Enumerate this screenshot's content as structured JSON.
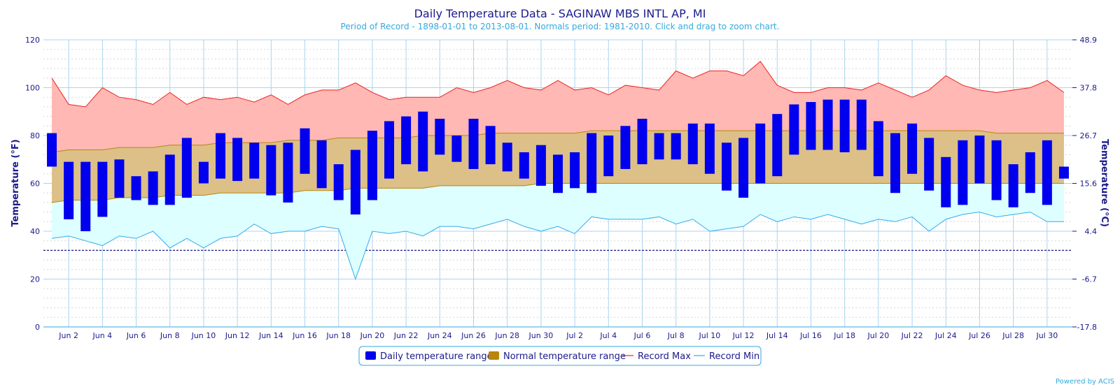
{
  "chart_data": {
    "type": "bar",
    "title": "Daily Temperature Data - SAGINAW MBS INTL AP, MI",
    "subtitle": "Period of Record - 1898-01-01 to 2013-08-01. Normals period: 1981-2010. Click and drag to zoom chart.",
    "ylabel": "Temperature (°F)",
    "ylabel_right": "Temperature (°C)",
    "ylim": [
      0,
      120
    ],
    "y_ticks": [
      0,
      20,
      40,
      60,
      80,
      100,
      120
    ],
    "y_ticks_right": [
      "-17.8",
      "-6.7",
      "4.4",
      "15.6",
      "26.7",
      "37.8",
      "48.9"
    ],
    "x_tick_labels": [
      "Jun 2",
      "Jun 4",
      "Jun 6",
      "Jun 8",
      "Jun 10",
      "Jun 12",
      "Jun 14",
      "Jun 16",
      "Jun 18",
      "Jun 20",
      "Jun 22",
      "Jun 24",
      "Jun 26",
      "Jun 28",
      "Jun 30",
      "Jul 2",
      "Jul 4",
      "Jul 6",
      "Jul 8",
      "Jul 10",
      "Jul 12",
      "Jul 14",
      "Jul 16",
      "Jul 18",
      "Jul 20",
      "Jul 22",
      "Jul 24",
      "Jul 26",
      "Jul 28",
      "Jul 30"
    ],
    "days": 61,
    "freezing_line": 32,
    "series": [
      {
        "name": "Daily temperature range",
        "color": "#0000ee",
        "low": [
          67,
          45,
          40,
          46,
          54,
          53,
          51,
          51,
          54,
          60,
          62,
          61,
          62,
          55,
          52,
          64,
          58,
          53,
          47,
          53,
          62,
          68,
          65,
          72,
          69,
          66,
          68,
          65,
          62,
          59,
          56,
          58,
          56,
          63,
          66,
          68,
          70,
          70,
          68,
          64,
          57,
          54,
          60,
          63,
          72,
          74,
          74,
          73,
          74,
          63,
          56,
          64,
          57,
          50,
          51,
          60,
          53,
          50,
          56,
          51,
          62
        ],
        "high": [
          81,
          69,
          69,
          69,
          70,
          63,
          65,
          72,
          79,
          69,
          81,
          79,
          77,
          76,
          77,
          83,
          78,
          68,
          74,
          82,
          86,
          88,
          90,
          87,
          80,
          87,
          84,
          77,
          73,
          76,
          72,
          73,
          81,
          80,
          84,
          87,
          81,
          81,
          85,
          85,
          77,
          79,
          85,
          89,
          93,
          94,
          95,
          95,
          95,
          86,
          81,
          85,
          79,
          71,
          78,
          80,
          78,
          68,
          73,
          78,
          67
        ]
      },
      {
        "name": "Normal temperature range",
        "color": "#b8860b",
        "low": [
          52,
          53,
          53,
          53,
          54,
          54,
          54,
          55,
          55,
          55,
          56,
          56,
          56,
          56,
          56,
          57,
          57,
          57,
          58,
          58,
          58,
          58,
          58,
          59,
          59,
          59,
          59,
          59,
          59,
          60,
          60,
          60,
          60,
          60,
          60,
          60,
          60,
          60,
          60,
          60,
          60,
          60,
          60,
          60,
          60,
          60,
          60,
          60,
          60,
          60,
          60,
          60,
          60,
          60,
          60,
          60,
          60,
          60,
          60,
          60,
          60
        ],
        "high": [
          73,
          74,
          74,
          74,
          75,
          75,
          75,
          76,
          76,
          76,
          77,
          77,
          77,
          77,
          78,
          78,
          78,
          79,
          79,
          79,
          79,
          79,
          80,
          80,
          80,
          80,
          81,
          81,
          81,
          81,
          81,
          81,
          82,
          82,
          82,
          82,
          82,
          82,
          82,
          82,
          82,
          82,
          82,
          82,
          82,
          82,
          82,
          82,
          82,
          82,
          82,
          82,
          82,
          82,
          82,
          82,
          81,
          81,
          81,
          81,
          81
        ]
      },
      {
        "name": "Record Max",
        "color": "#ee2222",
        "values": [
          104,
          93,
          92,
          100,
          96,
          95,
          93,
          98,
          93,
          96,
          95,
          96,
          94,
          97,
          93,
          97,
          99,
          99,
          102,
          98,
          95,
          96,
          96,
          96,
          100,
          98,
          100,
          103,
          100,
          99,
          103,
          99,
          100,
          97,
          101,
          100,
          99,
          107,
          104,
          107,
          107,
          105,
          111,
          101,
          98,
          98,
          100,
          100,
          99,
          102,
          99,
          96,
          99,
          105,
          101,
          99,
          98,
          99,
          100,
          103,
          98
        ]
      },
      {
        "name": "Record Min",
        "color": "#33aaee",
        "values": [
          37,
          38,
          36,
          34,
          38,
          37,
          40,
          33,
          37,
          33,
          37,
          38,
          43,
          39,
          40,
          40,
          42,
          41,
          20,
          40,
          39,
          40,
          38,
          42,
          42,
          41,
          43,
          45,
          42,
          40,
          42,
          39,
          46,
          45,
          45,
          45,
          46,
          43,
          45,
          40,
          41,
          42,
          47,
          44,
          46,
          45,
          47,
          45,
          43,
          45,
          44,
          46,
          40,
          45,
          47,
          48,
          46,
          47,
          48,
          44,
          44
        ]
      }
    ],
    "legend_position": "bottom-center",
    "grid": true
  },
  "credit": "Powered by ACIS"
}
